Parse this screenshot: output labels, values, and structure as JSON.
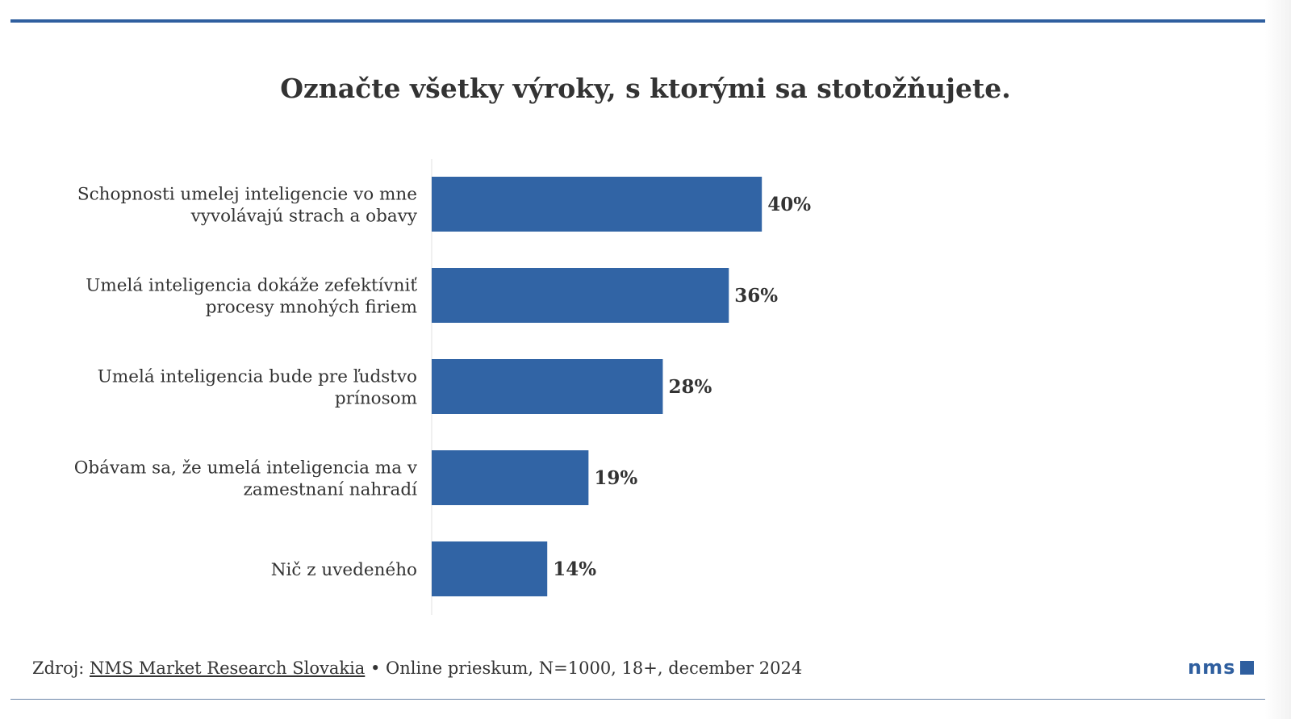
{
  "chart_data": {
    "type": "bar",
    "orientation": "horizontal",
    "title": "Označte všetky výroky, s ktorými sa stotožňujete.",
    "categories": [
      [
        "Schopnosti umelej inteligencie vo mne",
        "vyvolávajú strach a obavy"
      ],
      [
        "Umelá inteligencia dokáže zefektívniť",
        "procesy mnohých firiem"
      ],
      [
        "Umelá inteligencia bude pre ľudstvo",
        "prínosom"
      ],
      [
        "Obávam sa, že umelá inteligencia ma v",
        "zamestnaní nahradí"
      ],
      [
        "Nič z uvedeného"
      ]
    ],
    "values": [
      40,
      36,
      28,
      19,
      14
    ],
    "value_labels": [
      "40%",
      "36%",
      "28%",
      "19%",
      "14%"
    ],
    "unit": "%",
    "xlim": [
      0,
      100
    ],
    "grid": false,
    "bar_color": "#3164a5"
  },
  "footer": {
    "prefix": "Zdroj: ",
    "source_link": "NMS Market Research Slovakia",
    "details": " • Online prieskum, N=1000, 18+, december 2024"
  },
  "logo": {
    "text": "nms"
  },
  "colors": {
    "accent": "#2f5f9f",
    "bar": "#3164a5"
  }
}
